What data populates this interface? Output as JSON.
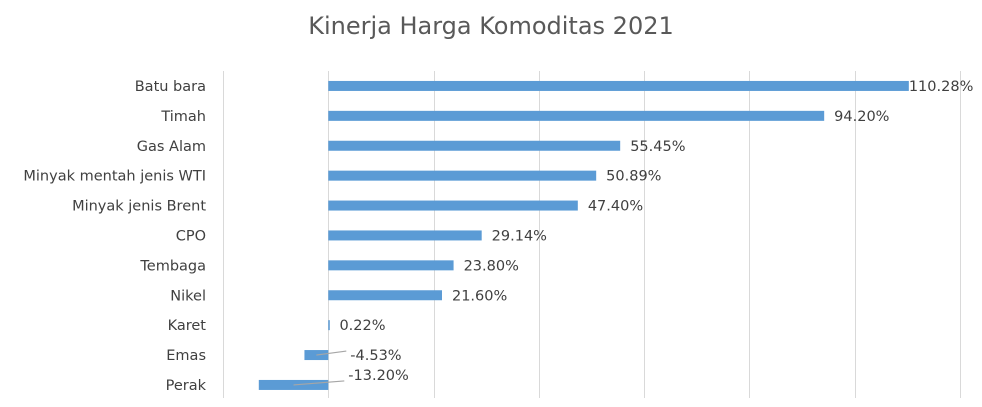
{
  "chart_data": {
    "type": "bar",
    "orientation": "horizontal",
    "title": "Kinerja Harga Komoditas 2021",
    "categories": [
      "Batu bara",
      "Timah",
      "Gas Alam",
      "Minyak mentah jenis WTI",
      "Minyak jenis Brent",
      "CPO",
      "Tembaga",
      "Nikel",
      "Karet",
      "Emas",
      "Perak"
    ],
    "values": [
      110.28,
      94.2,
      55.45,
      50.89,
      47.4,
      29.14,
      23.8,
      21.6,
      0.22,
      -4.53,
      -13.2
    ],
    "value_labels": [
      "110.28%",
      "94.20%",
      "55.45%",
      "50.89%",
      "47.40%",
      "29.14%",
      "23.80%",
      "21.60%",
      "0.22%",
      "-4.53%",
      "-13.20%"
    ],
    "xlim": [
      -20,
      120
    ],
    "grid": true,
    "legend": "none",
    "colors": {
      "bar": "#5b9bd5",
      "grid": "#d9d9d9",
      "text": "#404040",
      "title": "#595959",
      "leader": "#a6a6a6"
    }
  }
}
